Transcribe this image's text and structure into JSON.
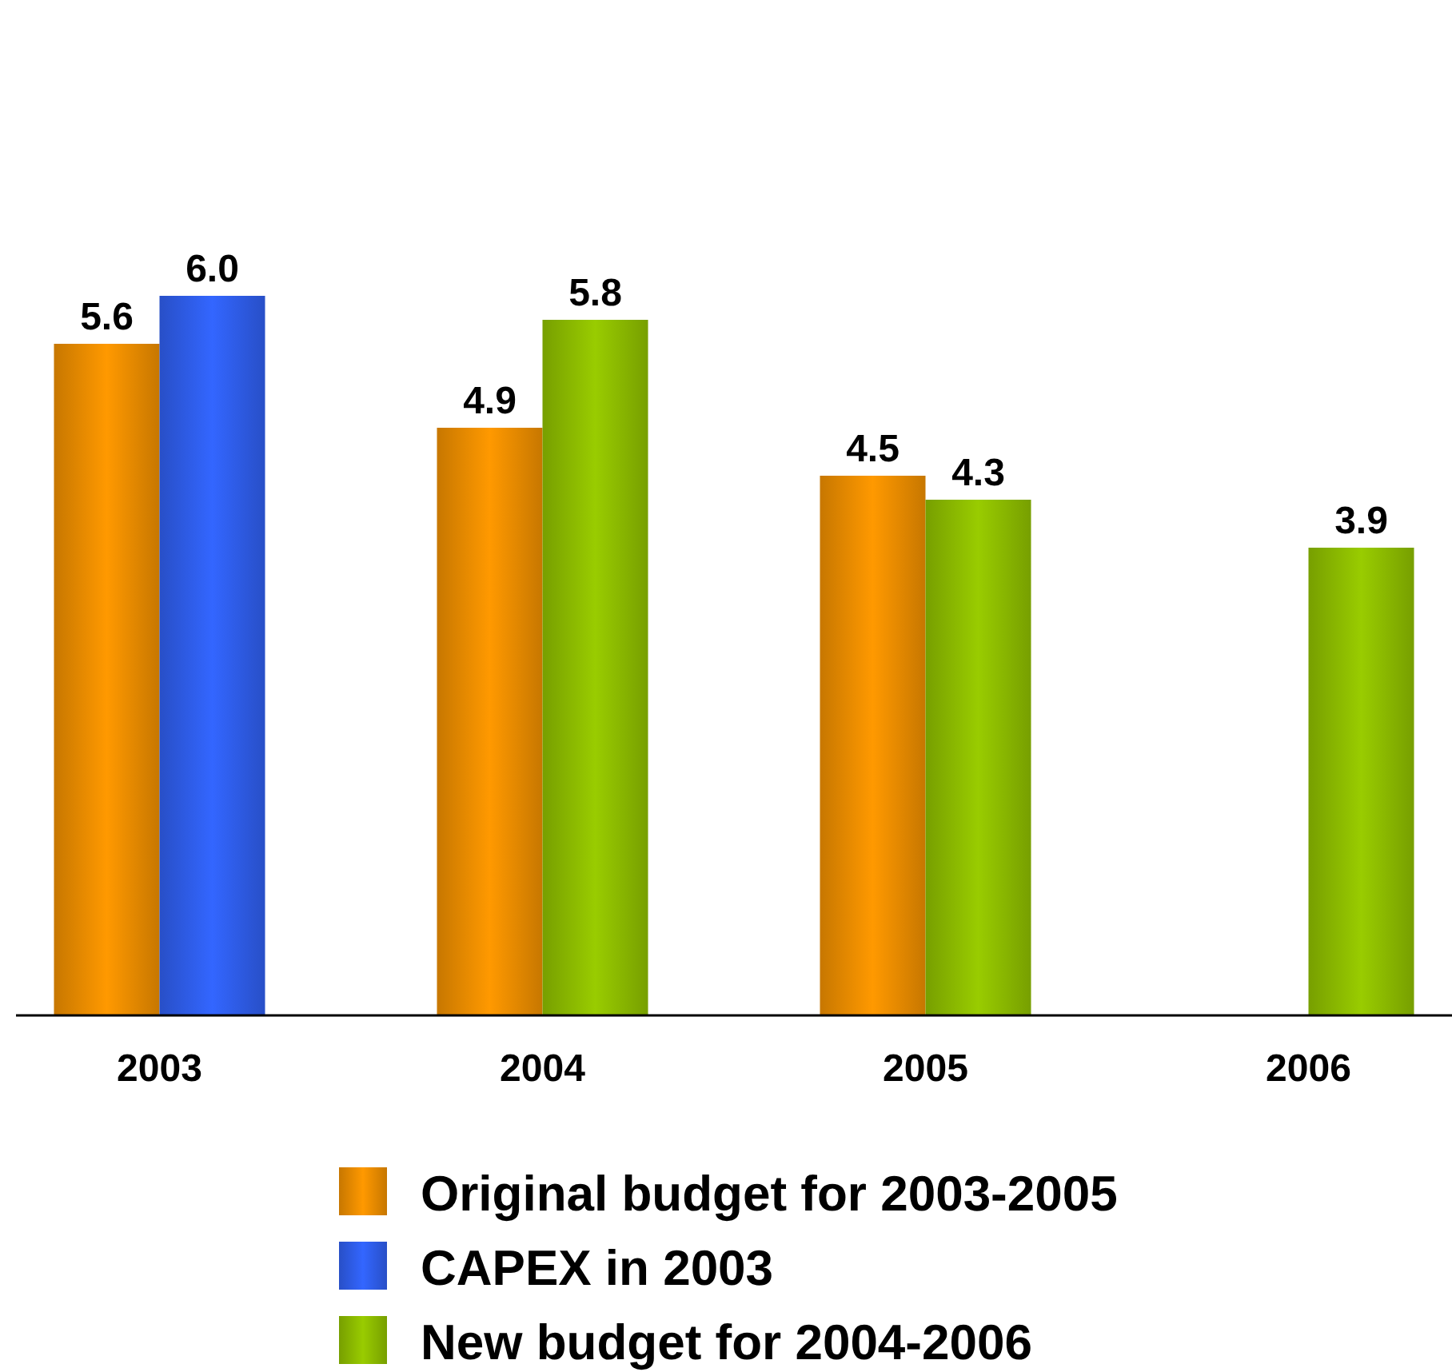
{
  "chart_data": {
    "type": "bar",
    "categories": [
      "2003",
      "2004",
      "2005",
      "2006"
    ],
    "series": [
      {
        "name": "Original budget for 2003-2005",
        "color": "#ff9900",
        "values": [
          5.6,
          4.9,
          4.5,
          null
        ],
        "value_labels": [
          "5.6",
          "4.9",
          "4.5",
          null
        ]
      },
      {
        "name": "CAPEX in 2003",
        "color": "#3366ff",
        "values": [
          6.0,
          null,
          null,
          null
        ],
        "value_labels": [
          "6.0",
          null,
          null,
          null
        ]
      },
      {
        "name": "New budget for 2004-2006",
        "color": "#99cc00",
        "values": [
          null,
          5.8,
          4.3,
          3.9
        ],
        "value_labels": [
          null,
          "5.8",
          "4.3",
          "3.9"
        ]
      }
    ],
    "legend": "bottom"
  }
}
